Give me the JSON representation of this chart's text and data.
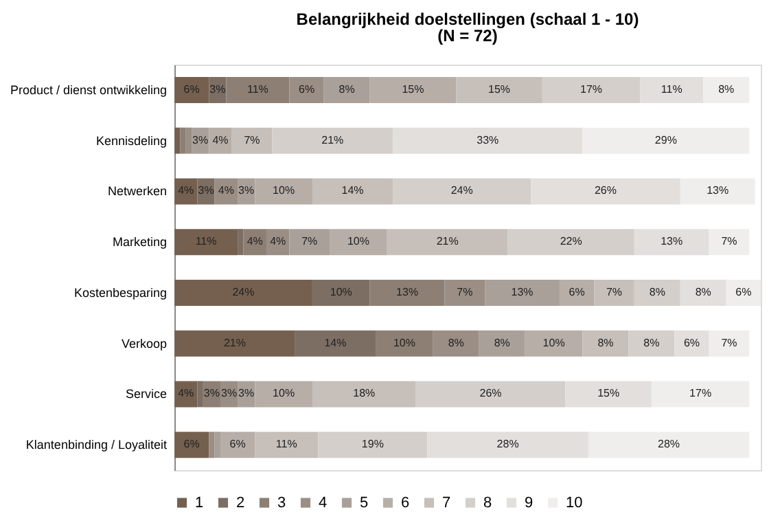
{
  "chart_data": {
    "type": "bar",
    "orientation": "horizontal",
    "stacked": true,
    "legend": "bottom",
    "title": "Belangrijkheid doelstellingen (schaal 1 - 10)",
    "subtitle": "(N = 72)",
    "categories": [
      "Product / dienst ontwikkeling",
      "Kennisdeling",
      "Netwerken",
      "Marketing",
      "Kostenbesparing",
      "Verkoop",
      "Service",
      "Klantenbinding / Loyaliteit"
    ],
    "series": [
      {
        "name": "1",
        "color": "#75604f",
        "values": [
          6,
          1,
          4,
          11,
          24,
          21,
          4,
          6
        ],
        "value_labels": [
          "6%",
          null,
          "4%",
          "11%",
          "24%",
          "21%",
          "4%",
          "6%"
        ]
      },
      {
        "name": "2",
        "color": "#7d6e64",
        "values": [
          3,
          0,
          3,
          1,
          10,
          14,
          1,
          0
        ],
        "value_labels": [
          "3%",
          null,
          "3%",
          null,
          "10%",
          "14%",
          null,
          null
        ]
      },
      {
        "name": "3",
        "color": "#8d7f74",
        "values": [
          11,
          1,
          0,
          4,
          13,
          10,
          3,
          0
        ],
        "value_labels": [
          "11%",
          null,
          null,
          "4%",
          "13%",
          "10%",
          "3%",
          null
        ]
      },
      {
        "name": "4",
        "color": "#9b8e85",
        "values": [
          6,
          1,
          4,
          4,
          7,
          8,
          3,
          1
        ],
        "value_labels": [
          "6%",
          null,
          "4%",
          "4%",
          "7%",
          "8%",
          "3%",
          null
        ]
      },
      {
        "name": "5",
        "color": "#a9a09a",
        "values": [
          8,
          3,
          3,
          7,
          13,
          8,
          3,
          1
        ],
        "value_labels": [
          "8%",
          "3%",
          "3%",
          "7%",
          "13%",
          "8%",
          "3%",
          null
        ]
      },
      {
        "name": "6",
        "color": "#b7aea8",
        "values": [
          15,
          4,
          10,
          10,
          6,
          10,
          10,
          6
        ],
        "value_labels": [
          "15%",
          "4%",
          "10%",
          "10%",
          "6%",
          "10%",
          "10%",
          "6%"
        ]
      },
      {
        "name": "7",
        "color": "#c6bfba",
        "values": [
          15,
          7,
          14,
          21,
          7,
          8,
          18,
          11
        ],
        "value_labels": [
          "15%",
          "7%",
          "14%",
          "21%",
          "7%",
          "8%",
          "18%",
          "11%"
        ]
      },
      {
        "name": "8",
        "color": "#d4cfcb",
        "values": [
          17,
          21,
          24,
          22,
          8,
          8,
          26,
          19
        ],
        "value_labels": [
          "17%",
          "21%",
          "24%",
          "22%",
          "8%",
          "8%",
          "26%",
          "19%"
        ]
      },
      {
        "name": "9",
        "color": "#e2dfdc",
        "values": [
          11,
          33,
          26,
          13,
          8,
          6,
          15,
          28
        ],
        "value_labels": [
          "11%",
          "33%",
          "26%",
          "13%",
          "8%",
          "6%",
          "15%",
          "28%"
        ]
      },
      {
        "name": "10",
        "color": "#efeeed",
        "values": [
          8,
          29,
          13,
          7,
          6,
          7,
          17,
          28
        ],
        "value_labels": [
          "8%",
          "29%",
          "13%",
          "7%",
          "6%",
          "7%",
          "17%",
          "28%"
        ]
      }
    ]
  }
}
